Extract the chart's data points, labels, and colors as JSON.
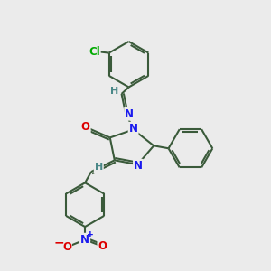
{
  "bg_color": "#ebebeb",
  "bond_color": "#3a5a3a",
  "bond_width": 1.5,
  "atom_colors": {
    "N": "#1a1aee",
    "O": "#dd0000",
    "Cl": "#00aa00",
    "H": "#4a8888",
    "C": "#3a5a3a"
  },
  "figsize": [
    3.0,
    3.0
  ],
  "dpi": 100,
  "xlim": [
    0,
    10
  ],
  "ylim": [
    0,
    10
  ]
}
